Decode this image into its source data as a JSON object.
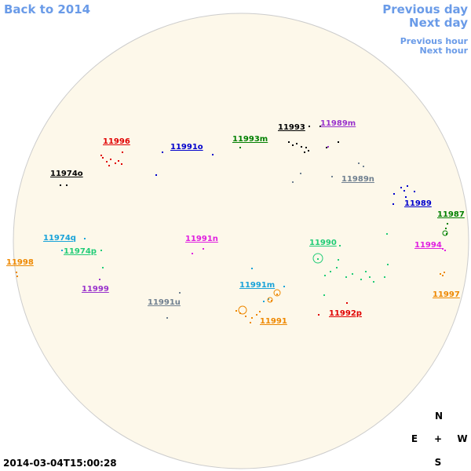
{
  "nav": {
    "back": "Back to 2014",
    "previous_day": "Previous day",
    "next_day": "Next day",
    "previous_hour": "Previous hour",
    "next_hour": "Next hour"
  },
  "regions": [
    {
      "label": "11996",
      "color": "#e00000"
    },
    {
      "label": "11991o",
      "color": "#0000cc"
    },
    {
      "label": "11993m",
      "color": "#008000"
    },
    {
      "label": "11993",
      "color": "#000000"
    },
    {
      "label": "11989m",
      "color": "#9933cc"
    },
    {
      "label": "11974o",
      "color": "#000000"
    },
    {
      "label": "11989n",
      "color": "#708090"
    },
    {
      "label": "11989",
      "color": "#0000cc"
    },
    {
      "label": "11987",
      "color": "#008000"
    },
    {
      "label": "11974q",
      "color": "#1aa3d9"
    },
    {
      "label": "11991n",
      "color": "#e020e0"
    },
    {
      "label": "11990",
      "color": "#22cc77"
    },
    {
      "label": "11974p",
      "color": "#22cc77"
    },
    {
      "label": "11994",
      "color": "#e020e0"
    },
    {
      "label": "11998",
      "color": "#ee8800"
    },
    {
      "label": "11999",
      "color": "#9933cc"
    },
    {
      "label": "11991m",
      "color": "#1aa3d9"
    },
    {
      "label": "11997",
      "color": "#ee8800"
    },
    {
      "label": "11991u",
      "color": "#708090"
    },
    {
      "label": "11991",
      "color": "#ee8800"
    },
    {
      "label": "11992p",
      "color": "#e00000"
    }
  ],
  "compass": {
    "north": "N",
    "east": "E",
    "center": "+",
    "west": "W",
    "south": "S"
  },
  "timestamp": "2014-03-04T15:00:28"
}
